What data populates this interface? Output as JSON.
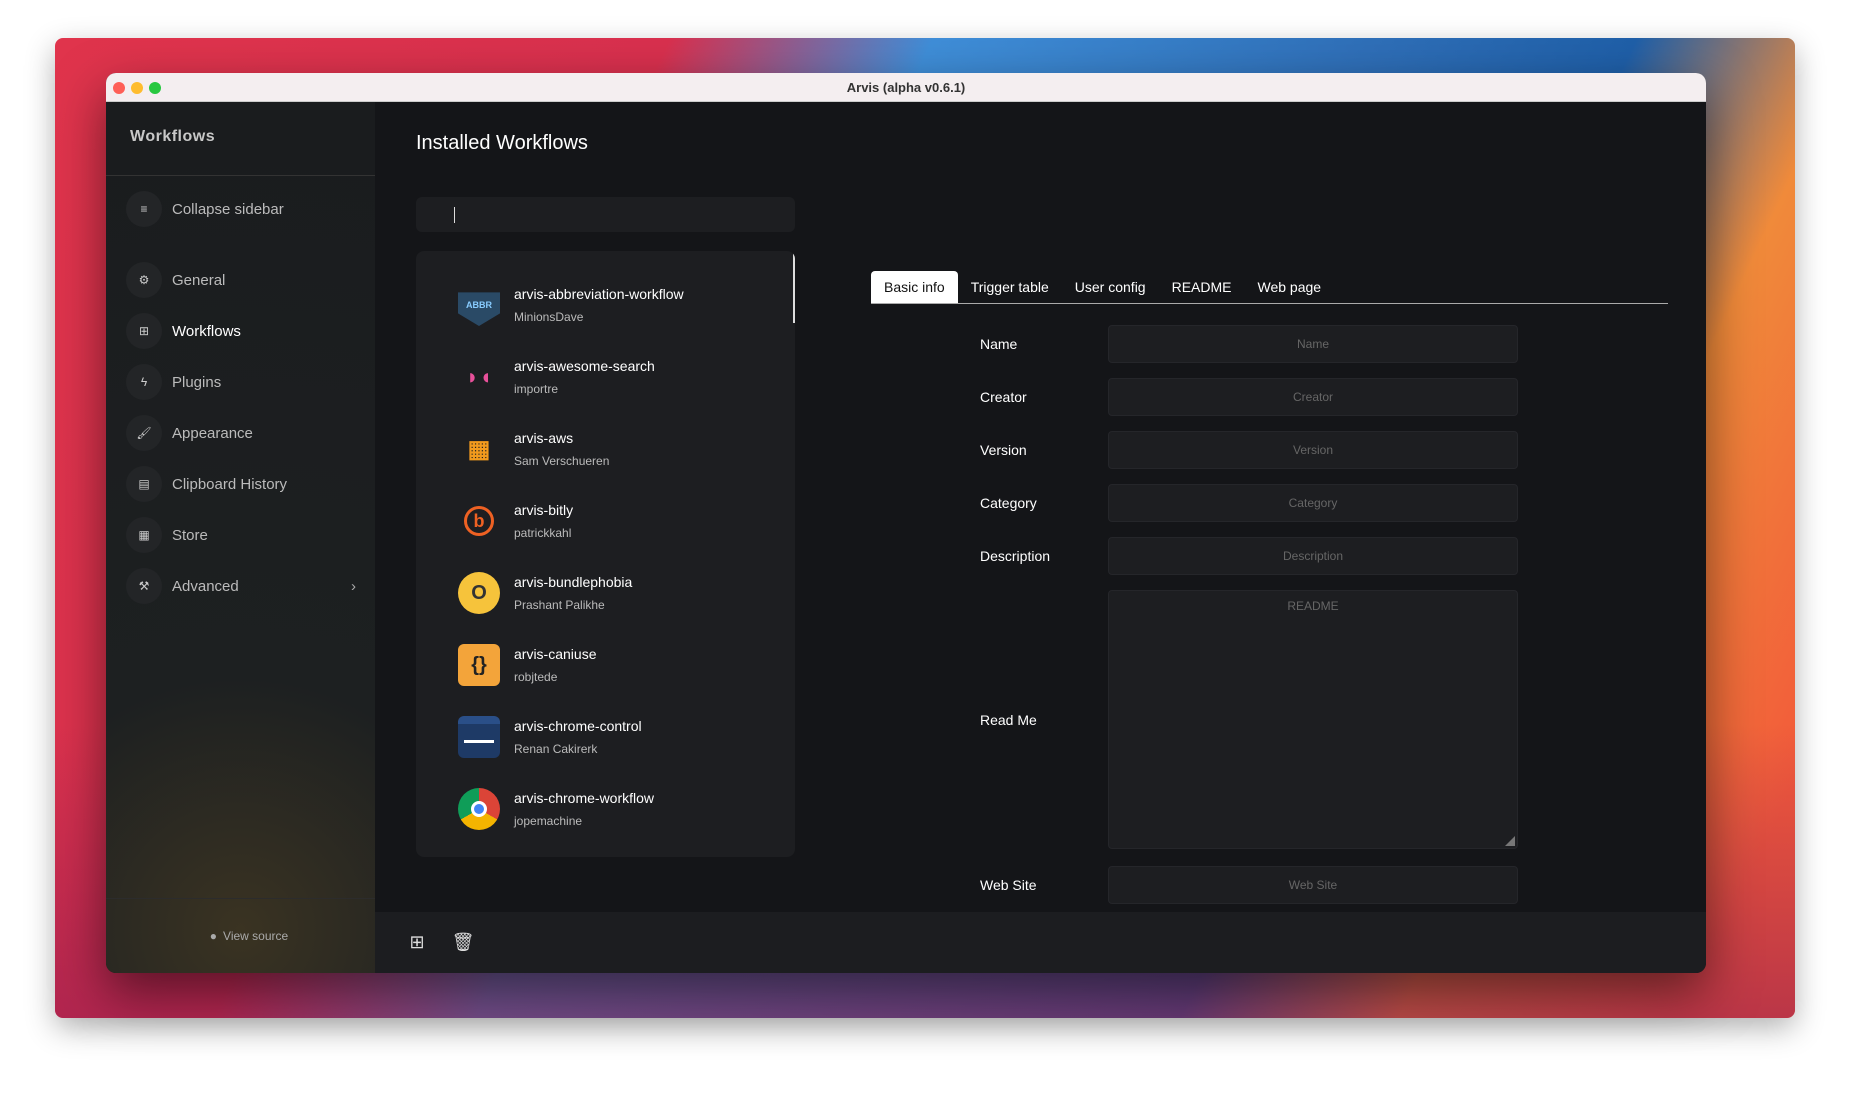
{
  "window": {
    "title": "Arvis (alpha v0.6.1)"
  },
  "sidebar": {
    "title": "Workflows",
    "collapse": "Collapse sidebar",
    "items": [
      {
        "label": "General",
        "icon": "gear-icon"
      },
      {
        "label": "Workflows",
        "icon": "grid-icon"
      },
      {
        "label": "Plugins",
        "icon": "bolt-icon"
      },
      {
        "label": "Appearance",
        "icon": "paint-roller-icon"
      },
      {
        "label": "Clipboard History",
        "icon": "clipboard-icon"
      },
      {
        "label": "Store",
        "icon": "store-icon"
      },
      {
        "label": "Advanced",
        "icon": "wrench-icon"
      }
    ],
    "view_source": "View source"
  },
  "main": {
    "heading": "Installed Workflows",
    "search": {
      "value": "",
      "placeholder": ""
    },
    "workflows": [
      {
        "name": "arvis-abbreviation-workflow",
        "author": "MinionsDave"
      },
      {
        "name": "arvis-awesome-search",
        "author": "importre"
      },
      {
        "name": "arvis-aws",
        "author": "Sam Verschueren"
      },
      {
        "name": "arvis-bitly",
        "author": "patrickkahl"
      },
      {
        "name": "arvis-bundlephobia",
        "author": "Prashant Palikhe"
      },
      {
        "name": "arvis-caniuse",
        "author": "robjtede"
      },
      {
        "name": "arvis-chrome-control",
        "author": "Renan Cakirerk"
      },
      {
        "name": "arvis-chrome-workflow",
        "author": "jopemachine"
      }
    ]
  },
  "tabs": [
    "Basic info",
    "Trigger table",
    "User config",
    "README",
    "Web page"
  ],
  "form": {
    "name": {
      "label": "Name",
      "placeholder": "Name"
    },
    "creator": {
      "label": "Creator",
      "placeholder": "Creator"
    },
    "version": {
      "label": "Version",
      "placeholder": "Version"
    },
    "category": {
      "label": "Category",
      "placeholder": "Category"
    },
    "description": {
      "label": "Description",
      "placeholder": "Description"
    },
    "readme": {
      "label": "Read Me",
      "placeholder": "README"
    },
    "website": {
      "label": "Web Site",
      "placeholder": "Web Site"
    }
  },
  "colors": {
    "accent": "#ffffff",
    "background": "#141518",
    "panel": "#1d1e21"
  }
}
